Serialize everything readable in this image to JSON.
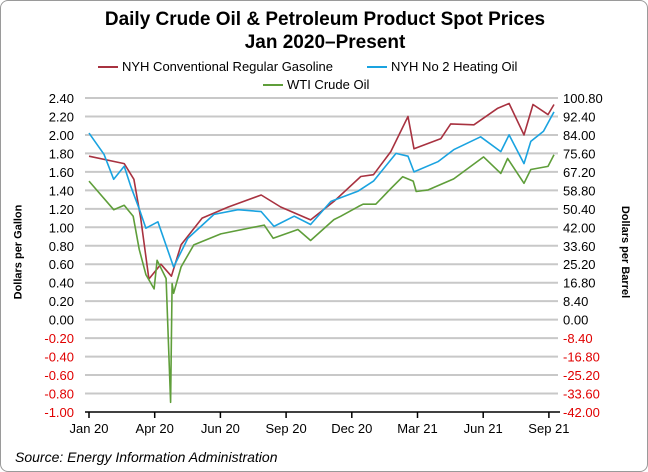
{
  "chart_data": {
    "type": "line",
    "title": "Daily Crude Oil & Petroleum Product Spot Prices",
    "subtitle": "Jan 2020–Present",
    "ylabel": "Dollars per Gallon",
    "y2label": "Dollars per Barrel",
    "ylim": [
      -1.0,
      2.4
    ],
    "y2lim": [
      -42.0,
      100.8
    ],
    "yticks": [
      "2.40",
      "2.20",
      "2.00",
      "1.80",
      "1.60",
      "1.40",
      "1.20",
      "1.00",
      "0.80",
      "0.60",
      "0.40",
      "0.20",
      "0.00",
      "-0.20",
      "-0.40",
      "-0.60",
      "-0.80",
      "-1.00"
    ],
    "y2ticks": [
      "100.80",
      "92.40",
      "84.00",
      "75.60",
      "67.20",
      "58.80",
      "50.40",
      "42.00",
      "33.60",
      "25.20",
      "16.80",
      "8.40",
      "0.00",
      "-8.40",
      "-16.80",
      "-25.20",
      "-33.60",
      "-42.00"
    ],
    "xticks": [
      "Jan 20",
      "Apr 20",
      "Jun 20",
      "Sep 20",
      "Dec 20",
      "Mar 21",
      "Jun 21",
      "Sep 21"
    ],
    "negative_tick_color": "#e00000",
    "grid": true,
    "legend_position": "top",
    "series": [
      {
        "name": "NYH Conventional Regular Gasoline",
        "axis": "left",
        "color": "#a83240",
        "points": [
          [
            "2020-01-02",
            1.77
          ],
          [
            "2020-02-18",
            1.69
          ],
          [
            "2020-03-02",
            1.52
          ],
          [
            "2020-03-11",
            1.1
          ],
          [
            "2020-03-22",
            0.44
          ],
          [
            "2020-04-07",
            0.6
          ],
          [
            "2020-04-21",
            0.47
          ],
          [
            "2020-05-04",
            0.81
          ],
          [
            "2020-06-01",
            1.1
          ],
          [
            "2020-07-06",
            1.22
          ],
          [
            "2020-08-19",
            1.35
          ],
          [
            "2020-09-14",
            1.22
          ],
          [
            "2020-10-24",
            1.08
          ],
          [
            "2020-11-24",
            1.28
          ],
          [
            "2020-12-30",
            1.55
          ],
          [
            "2021-01-16",
            1.57
          ],
          [
            "2021-02-08",
            1.82
          ],
          [
            "2021-03-03",
            2.2
          ],
          [
            "2021-03-11",
            1.85
          ],
          [
            "2021-04-16",
            1.96
          ],
          [
            "2021-04-29",
            2.12
          ],
          [
            "2021-05-30",
            2.11
          ],
          [
            "2021-07-01",
            2.29
          ],
          [
            "2021-07-16",
            2.34
          ],
          [
            "2021-08-05",
            2.0
          ],
          [
            "2021-08-17",
            2.33
          ],
          [
            "2021-09-06",
            2.22
          ],
          [
            "2021-09-14",
            2.33
          ]
        ]
      },
      {
        "name": "NYH No 2 Heating Oil",
        "axis": "left",
        "color": "#1aa3e0",
        "points": [
          [
            "2020-01-02",
            2.02
          ],
          [
            "2020-01-22",
            1.79
          ],
          [
            "2020-02-04",
            1.52
          ],
          [
            "2020-02-18",
            1.66
          ],
          [
            "2020-02-27",
            1.44
          ],
          [
            "2020-03-09",
            1.2
          ],
          [
            "2020-03-18",
            0.99
          ],
          [
            "2020-04-03",
            1.06
          ],
          [
            "2020-04-24",
            0.57
          ],
          [
            "2020-05-13",
            0.88
          ],
          [
            "2020-06-17",
            1.14
          ],
          [
            "2020-07-19",
            1.19
          ],
          [
            "2020-08-19",
            1.17
          ],
          [
            "2020-09-05",
            1.01
          ],
          [
            "2020-10-02",
            1.12
          ],
          [
            "2020-10-24",
            1.03
          ],
          [
            "2020-11-20",
            1.28
          ],
          [
            "2020-12-26",
            1.39
          ],
          [
            "2021-01-16",
            1.5
          ],
          [
            "2021-02-15",
            1.8
          ],
          [
            "2021-03-03",
            1.77
          ],
          [
            "2021-03-11",
            1.6
          ],
          [
            "2021-04-12",
            1.71
          ],
          [
            "2021-05-03",
            1.84
          ],
          [
            "2021-06-08",
            1.98
          ],
          [
            "2021-07-05",
            1.82
          ],
          [
            "2021-07-16",
            2.0
          ],
          [
            "2021-08-05",
            1.69
          ],
          [
            "2021-08-14",
            1.93
          ],
          [
            "2021-08-31",
            2.04
          ],
          [
            "2021-09-14",
            2.25
          ]
        ]
      },
      {
        "name": "WTI Crude Oil",
        "axis": "right",
        "color": "#5f9e3a",
        "points": [
          [
            "2020-01-02",
            63.0
          ],
          [
            "2020-02-04",
            50.0
          ],
          [
            "2020-02-18",
            52.0
          ],
          [
            "2020-03-01",
            47.0
          ],
          [
            "2020-03-09",
            32.0
          ],
          [
            "2020-03-18",
            20.5
          ],
          [
            "2020-03-29",
            14.0
          ],
          [
            "2020-04-02",
            27.0
          ],
          [
            "2020-04-14",
            18.7
          ],
          [
            "2020-04-20",
            -37.6
          ],
          [
            "2020-04-22",
            16.4
          ],
          [
            "2020-04-24",
            12.0
          ],
          [
            "2020-05-04",
            24.0
          ],
          [
            "2020-05-21",
            34.0
          ],
          [
            "2020-06-26",
            39.0
          ],
          [
            "2020-08-23",
            43.0
          ],
          [
            "2020-09-04",
            37.0
          ],
          [
            "2020-10-07",
            41.0
          ],
          [
            "2020-10-24",
            36.0
          ],
          [
            "2020-11-24",
            45.5
          ],
          [
            "2020-12-03",
            47.0
          ],
          [
            "2020-12-27",
            51.5
          ],
          [
            "2021-01-02",
            52.5
          ],
          [
            "2021-01-19",
            52.5
          ],
          [
            "2021-02-08",
            59.6
          ],
          [
            "2021-02-24",
            65.0
          ],
          [
            "2021-03-10",
            63.0
          ],
          [
            "2021-03-14",
            58.3
          ],
          [
            "2021-03-30",
            59.0
          ],
          [
            "2021-05-03",
            64.0
          ],
          [
            "2021-06-12",
            74.0
          ],
          [
            "2021-07-05",
            66.5
          ],
          [
            "2021-07-14",
            73.3
          ],
          [
            "2021-08-05",
            62.0
          ],
          [
            "2021-08-14",
            68.3
          ],
          [
            "2021-09-06",
            69.7
          ],
          [
            "2021-09-14",
            75.0
          ]
        ]
      }
    ]
  },
  "source": "Source: Energy Information Administration"
}
